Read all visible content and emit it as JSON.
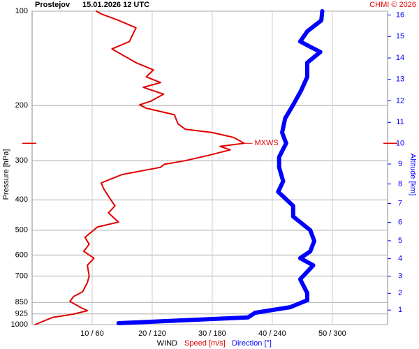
{
  "chart_data": {
    "type": "profile",
    "title": "Prostejov",
    "subtitle": "15.01.2026 12 UTC",
    "credit": "CHMI © 2026",
    "ylabel": "Pressure [hPa]",
    "y2label": "Altitude [km]",
    "xlabel": "WIND",
    "ylog": true,
    "ylim": [
      100,
      1000
    ],
    "yticks": [
      100,
      200,
      300,
      400,
      500,
      600,
      700,
      850,
      925,
      1000
    ],
    "y2ticks": [
      1,
      2,
      3,
      4,
      5,
      6,
      7,
      8,
      9,
      10,
      11,
      12,
      13,
      14,
      15,
      16
    ],
    "xlim": [
      0,
      59.2
    ],
    "x2lim": [
      0,
      354
    ],
    "xticks": [
      {
        "value": 10,
        "label": "10 / 60"
      },
      {
        "value": 20,
        "label": "20 / 120"
      },
      {
        "value": 30,
        "label": "30 / 180"
      },
      {
        "value": 40,
        "label": "40 / 240"
      },
      {
        "value": 50,
        "label": "50 / 300"
      }
    ],
    "grid": true,
    "annotation": {
      "text": "MXWS",
      "y": 264
    },
    "series": [
      {
        "name": "Speed [m/s]",
        "color": "#e00000",
        "axis": "x",
        "width": 2,
        "pressure": [
          1000,
          949,
          926,
          903,
          880,
          844,
          814,
          786,
          735,
          699,
          647,
          614,
          584,
          554,
          527,
          488,
          471,
          440,
          418,
          397,
          368,
          353,
          332,
          315,
          308,
          300,
          288,
          277,
          270,
          264,
          253,
          244,
          238,
          229,
          214,
          204,
          199,
          194,
          184,
          175,
          169,
          162,
          154,
          146,
          132,
          125,
          113,
          107,
          102,
          100
        ],
        "values": [
          0.5,
          3.4,
          6.9,
          9.2,
          8,
          6.3,
          6.9,
          8.4,
          9.2,
          9.5,
          9.2,
          10.3,
          8.6,
          9.5,
          8.8,
          10.9,
          14.4,
          12.7,
          13.8,
          13,
          11.9,
          11.5,
          15,
          21.4,
          22,
          25.5,
          29.5,
          33,
          31.3,
          35.3,
          33.6,
          30,
          25.5,
          24.3,
          23.7,
          19,
          17.9,
          19.7,
          21.9,
          18.5,
          21.4,
          19,
          20.2,
          17.3,
          13.3,
          16.2,
          17.3,
          14.4,
          11.5,
          10.7
        ]
      },
      {
        "name": "Direction [°]",
        "color": "#0000ff",
        "axis": "x2",
        "width": 6,
        "pressure": [
          990,
          949,
          917,
          880,
          836,
          794,
          717,
          647,
          614,
          584,
          541,
          500,
          452,
          418,
          377,
          349,
          315,
          292,
          264,
          244,
          220,
          199,
          179,
          162,
          146,
          135,
          125,
          116,
          107,
          100
        ],
        "values": [
          86,
          215,
          222,
          257,
          274,
          274,
          267,
          280,
          267,
          277,
          281,
          277,
          260,
          260,
          245,
          250,
          246,
          246,
          253,
          249,
          252,
          260,
          268,
          274,
          274,
          287,
          267,
          274,
          288,
          289
        ]
      }
    ]
  }
}
